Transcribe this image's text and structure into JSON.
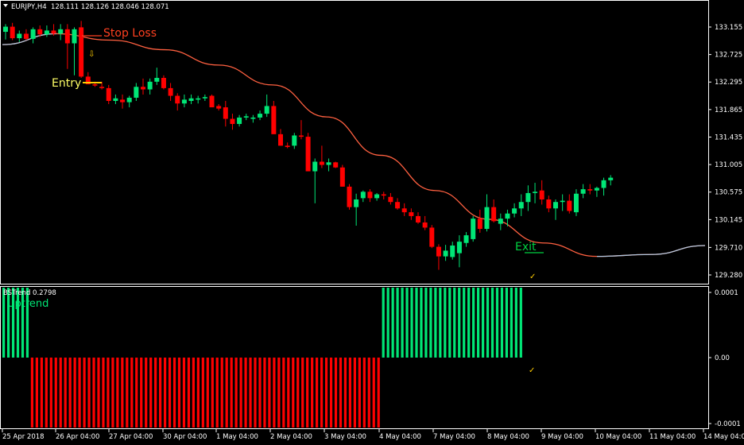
{
  "header": {
    "symbol_tf": "EURJPY,H4",
    "ohlc": "128.111 128.126 128.046 128.071"
  },
  "indicator": {
    "title": "BSTrend 0.2798",
    "state_label": "Uptrend",
    "axis_labels": [
      "0.0001",
      "0.00",
      "-0.0001"
    ]
  },
  "annotations": {
    "stop_loss": "Stop Loss",
    "entry": "Entry",
    "exit": "Exit"
  },
  "colors": {
    "bull": "#00e676",
    "bear": "#ff0000",
    "ma": "#ff6040",
    "ma_flat": "#b0c8e0",
    "entry_label": "#ffff66",
    "entry_line": "#ffcc00",
    "stop_loss": "#ff4020",
    "exit": "#00d040",
    "check": "#ffcc00",
    "arrow": "#ffcc00",
    "hist_up": "#00e676",
    "hist_down": "#ff0000"
  },
  "chart_data": [
    {
      "type": "candlestick",
      "title": "EURJPY,H4",
      "price_ticks": [
        "133.155",
        "132.725",
        "132.295",
        "131.865",
        "131.435",
        "131.005",
        "130.575",
        "130.145",
        "129.710",
        "129.280"
      ],
      "time_ticks": [
        "25 Apr 2018",
        "26 Apr 04:00",
        "27 Apr 04:00",
        "30 Apr 04:00",
        "1 May 04:00",
        "2 May 04:00",
        "3 May 04:00",
        "4 May 04:00",
        "7 May 04:00",
        "8 May 04:00",
        "9 May 04:00",
        "10 May 04:00",
        "11 May 04:00",
        "14 May 04:00"
      ],
      "ylim": [
        129.08,
        133.45
      ],
      "candles_ohlc": [
        [
          133.08,
          133.2,
          132.96,
          133.16
        ],
        [
          133.16,
          133.22,
          132.95,
          132.98
        ],
        [
          132.98,
          133.1,
          132.92,
          133.05
        ],
        [
          133.05,
          133.12,
          132.95,
          132.97
        ],
        [
          132.97,
          133.15,
          132.9,
          133.12
        ],
        [
          133.12,
          133.18,
          133.0,
          133.04
        ],
        [
          133.04,
          133.18,
          133.0,
          133.1
        ],
        [
          133.1,
          133.2,
          133.02,
          133.05
        ],
        [
          133.05,
          133.2,
          132.95,
          133.12
        ],
        [
          133.12,
          133.2,
          132.5,
          132.9
        ],
        [
          132.9,
          133.15,
          132.4,
          133.12
        ],
        [
          133.15,
          133.25,
          132.36,
          132.38
        ],
        [
          132.38,
          132.45,
          132.26,
          132.26
        ],
        [
          132.26,
          132.3,
          132.22,
          132.24
        ],
        [
          132.22,
          132.3,
          132.18,
          132.2
        ],
        [
          132.2,
          132.25,
          131.95,
          132.0
        ],
        [
          132.0,
          132.1,
          131.95,
          132.04
        ],
        [
          132.02,
          132.1,
          131.88,
          131.98
        ],
        [
          131.98,
          132.08,
          131.9,
          132.05
        ],
        [
          132.05,
          132.28,
          132.0,
          132.22
        ],
        [
          132.22,
          132.35,
          132.1,
          132.18
        ],
        [
          132.18,
          132.35,
          132.1,
          132.3
        ],
        [
          132.3,
          132.52,
          132.25,
          132.36
        ],
        [
          132.36,
          132.4,
          132.18,
          132.2
        ],
        [
          132.2,
          132.28,
          132.0,
          132.08
        ],
        [
          132.08,
          132.12,
          131.85,
          131.96
        ],
        [
          131.96,
          132.1,
          131.9,
          132.02
        ],
        [
          132.0,
          132.1,
          131.95,
          132.04
        ],
        [
          132.02,
          132.08,
          131.96,
          132.04
        ],
        [
          132.04,
          132.1,
          132.0,
          132.06
        ],
        [
          132.08,
          132.1,
          131.9,
          131.9
        ],
        [
          131.92,
          131.95,
          131.85,
          131.88
        ],
        [
          131.9,
          132.0,
          131.6,
          131.72
        ],
        [
          131.72,
          131.8,
          131.55,
          131.64
        ],
        [
          131.64,
          131.78,
          131.6,
          131.74
        ],
        [
          131.74,
          131.8,
          131.7,
          131.76
        ],
        [
          131.72,
          131.78,
          131.66,
          131.74
        ],
        [
          131.74,
          131.85,
          131.7,
          131.8
        ],
        [
          131.8,
          132.1,
          131.75,
          131.92
        ],
        [
          131.92,
          132.0,
          131.5,
          131.48
        ],
        [
          131.48,
          131.56,
          131.3,
          131.3
        ],
        [
          131.3,
          131.35,
          131.26,
          131.28
        ],
        [
          131.3,
          131.5,
          131.25,
          131.46
        ],
        [
          131.46,
          131.7,
          131.4,
          131.44
        ],
        [
          131.44,
          131.5,
          130.9,
          130.9
        ],
        [
          130.9,
          131.1,
          130.4,
          131.05
        ],
        [
          131.05,
          131.3,
          130.95,
          131.0
        ],
        [
          131.0,
          131.1,
          130.9,
          131.04
        ],
        [
          131.04,
          131.05,
          130.95,
          130.96
        ],
        [
          130.96,
          131.0,
          130.66,
          130.66
        ],
        [
          130.66,
          130.7,
          130.3,
          130.34
        ],
        [
          130.34,
          130.55,
          130.05,
          130.46
        ],
        [
          130.48,
          130.6,
          130.42,
          130.58
        ],
        [
          130.58,
          130.62,
          130.42,
          130.48
        ],
        [
          130.48,
          130.56,
          130.44,
          130.54
        ],
        [
          130.54,
          130.58,
          130.46,
          130.52
        ],
        [
          130.5,
          130.56,
          130.38,
          130.42
        ],
        [
          130.42,
          130.48,
          130.3,
          130.32
        ],
        [
          130.32,
          130.4,
          130.2,
          130.26
        ],
        [
          130.26,
          130.32,
          130.14,
          130.2
        ],
        [
          130.2,
          130.26,
          130.08,
          130.1
        ],
        [
          130.1,
          130.2,
          129.98,
          130.02
        ],
        [
          130.02,
          130.06,
          129.7,
          129.72
        ],
        [
          129.72,
          129.76,
          129.36,
          129.57
        ],
        [
          129.57,
          129.75,
          129.5,
          129.66
        ],
        [
          129.56,
          129.8,
          129.52,
          129.74
        ],
        [
          129.62,
          129.9,
          129.4,
          129.8
        ],
        [
          129.78,
          129.95,
          129.72,
          129.9
        ],
        [
          129.84,
          130.2,
          129.8,
          130.16
        ],
        [
          130.16,
          130.3,
          129.94,
          130.0
        ],
        [
          130.0,
          130.54,
          129.96,
          130.34
        ],
        [
          130.34,
          130.46,
          130.1,
          130.12
        ],
        [
          130.08,
          130.24,
          129.98,
          130.16
        ],
        [
          130.16,
          130.3,
          130.04,
          130.24
        ],
        [
          130.24,
          130.4,
          130.18,
          130.32
        ],
        [
          130.32,
          130.54,
          130.2,
          130.42
        ],
        [
          130.42,
          130.68,
          130.28,
          130.56
        ],
        [
          130.56,
          130.72,
          130.4,
          130.58
        ],
        [
          130.6,
          130.76,
          130.38,
          130.46
        ],
        [
          130.46,
          130.52,
          130.26,
          130.32
        ],
        [
          130.32,
          130.46,
          130.14,
          130.42
        ],
        [
          130.42,
          130.54,
          130.28,
          130.44
        ],
        [
          130.44,
          130.54,
          130.24,
          130.28
        ],
        [
          130.26,
          130.62,
          130.2,
          130.55
        ],
        [
          130.55,
          130.7,
          130.48,
          130.62
        ],
        [
          130.62,
          130.7,
          130.54,
          130.6
        ],
        [
          130.6,
          130.66,
          130.5,
          130.64
        ],
        [
          130.64,
          130.8,
          130.52,
          130.76
        ],
        [
          130.76,
          130.84,
          130.68,
          130.8
        ]
      ],
      "moving_average": {
        "x": [
          "25 Apr 2018",
          "26 Apr 04:00",
          "27 Apr 04:00",
          "30 Apr 04:00",
          "1 May 04:00",
          "2 May 04:00",
          "3 May 04:00",
          "4 May 04:00",
          "7 May 04:00",
          "8 May 04:00",
          "9 May 04:00",
          "10 May 04:00",
          "11 May 04:00",
          "14 May 04:00"
        ],
        "y": [
          132.88,
          133.05,
          132.95,
          132.8,
          132.56,
          132.25,
          131.75,
          131.15,
          130.6,
          130.15,
          129.78,
          129.57,
          129.6,
          129.74
        ]
      },
      "markers": {
        "stop_loss_price": 133.12,
        "entry_price": 132.24,
        "exit_price": 129.68
      }
    },
    {
      "type": "bar",
      "title": "BSTrend 0.2798",
      "ylim": [
        -0.0001,
        0.0001
      ],
      "values": [
        0.0001,
        0.0001,
        0.0001,
        0.0001,
        0.0001,
        0.0001,
        -0.0001,
        -0.0001,
        -0.0001,
        -0.0001,
        -0.0001,
        -0.0001,
        -0.0001,
        -0.0001,
        -0.0001,
        -0.0001,
        -0.0001,
        -0.0001,
        -0.0001,
        -0.0001,
        -0.0001,
        -0.0001,
        -0.0001,
        -0.0001,
        -0.0001,
        -0.0001,
        -0.0001,
        -0.0001,
        -0.0001,
        -0.0001,
        -0.0001,
        -0.0001,
        -0.0001,
        -0.0001,
        -0.0001,
        -0.0001,
        -0.0001,
        -0.0001,
        -0.0001,
        -0.0001,
        -0.0001,
        -0.0001,
        -0.0001,
        -0.0001,
        -0.0001,
        -0.0001,
        -0.0001,
        -0.0001,
        -0.0001,
        -0.0001,
        -0.0001,
        -0.0001,
        -0.0001,
        -0.0001,
        -0.0001,
        -0.0001,
        -0.0001,
        -0.0001,
        -0.0001,
        -0.0001,
        -0.0001,
        -0.0001,
        -0.0001,
        -0.0001,
        -0.0001,
        -0.0001,
        -0.0001,
        -0.0001,
        -0.0001,
        -0.0001,
        -0.0001,
        -0.0001,
        -0.0001,
        -0.0001,
        -0.0001,
        -0.0001,
        -0.0001,
        -0.0001,
        -0.0001,
        -0.0001,
        0.0001,
        0.0001,
        0.0001,
        0.0001,
        0.0001,
        0.0001,
        0.0001,
        0.0001,
        0.0001,
        0.0001,
        0.0001,
        0.0001,
        0.0001,
        0.0001,
        0.0001,
        0.0001,
        0.0001,
        0.0001,
        0.0001,
        0.0001,
        0.0001,
        0.0001,
        0.0001,
        0.0001,
        0.0001,
        0.0001,
        0.0001,
        0.0001,
        0.0001,
        0.0001
      ]
    }
  ]
}
